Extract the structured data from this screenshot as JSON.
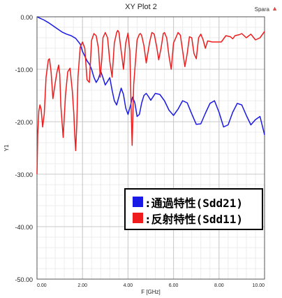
{
  "header": {
    "title": "XY Plot 2",
    "tag": "Spara",
    "tag_mark": "▲"
  },
  "chart_data": {
    "type": "line",
    "title": "XY Plot 2",
    "xlabel": "F [GHz]",
    "ylabel": "Y1",
    "xlim": [
      0,
      10
    ],
    "ylim": [
      -50,
      0
    ],
    "x_ticks": [
      "0.00",
      "2.00",
      "4.00",
      "6.00",
      "8.00",
      "10.00"
    ],
    "y_ticks": [
      "0.00",
      "-10.00",
      "-20.00",
      "-30.00",
      "-40.00",
      "-50.00"
    ],
    "grid": true,
    "legend_position": "lower-right",
    "colors": {
      "sdd21": "#1a1ae6",
      "sdd11": "#ee1c1c"
    },
    "series": [
      {
        "key": "sdd21",
        "name": "通過特性(Sdd21)",
        "color": "#1a1ae6",
        "x": [
          0.0,
          0.15,
          0.3,
          0.5,
          0.7,
          0.9,
          1.1,
          1.3,
          1.5,
          1.7,
          1.9,
          2.0,
          2.1,
          2.2,
          2.3,
          2.4,
          2.5,
          2.6,
          2.7,
          2.8,
          2.9,
          3.0,
          3.1,
          3.2,
          3.3,
          3.4,
          3.5,
          3.6,
          3.7,
          3.8,
          3.9,
          4.0,
          4.1,
          4.2,
          4.3,
          4.4,
          4.5,
          4.6,
          4.7,
          4.8,
          4.9,
          5.0,
          5.2,
          5.4,
          5.6,
          5.8,
          6.0,
          6.2,
          6.4,
          6.6,
          6.8,
          7.0,
          7.2,
          7.4,
          7.6,
          7.8,
          8.0,
          8.2,
          8.4,
          8.6,
          8.8,
          9.0,
          9.2,
          9.4,
          9.6,
          9.8,
          10.0
        ],
        "y": [
          0.0,
          -0.3,
          -0.6,
          -1.1,
          -1.7,
          -2.3,
          -2.9,
          -3.3,
          -3.6,
          -4.1,
          -5.2,
          -6.6,
          -7.5,
          -8.4,
          -9.0,
          -10.0,
          -11.5,
          -12.5,
          -11.8,
          -10.4,
          -11.6,
          -13.0,
          -12.3,
          -11.6,
          -14.0,
          -16.0,
          -16.8,
          -15.2,
          -13.6,
          -14.8,
          -17.4,
          -18.6,
          -17.0,
          -15.3,
          -16.4,
          -19.0,
          -18.6,
          -16.4,
          -15.0,
          -14.6,
          -15.2,
          -15.9,
          -14.6,
          -14.8,
          -16.0,
          -17.8,
          -18.8,
          -17.6,
          -16.0,
          -16.4,
          -18.5,
          -20.5,
          -20.4,
          -18.4,
          -16.5,
          -16.0,
          -18.2,
          -21.0,
          -20.6,
          -18.2,
          -16.5,
          -16.8,
          -18.8,
          -20.6,
          -19.6,
          -19.0,
          -22.5
        ]
      },
      {
        "key": "sdd11",
        "name": "反射特性(Sdd11)",
        "color": "#ee1c1c",
        "x": [
          0.0,
          0.03,
          0.08,
          0.13,
          0.18,
          0.25,
          0.32,
          0.4,
          0.5,
          0.55,
          0.62,
          0.7,
          0.8,
          0.88,
          0.95,
          1.0,
          1.05,
          1.15,
          1.25,
          1.35,
          1.45,
          1.55,
          1.62,
          1.66,
          1.7,
          1.75,
          1.8,
          1.9,
          2.0,
          2.1,
          2.2,
          2.3,
          2.35,
          2.4,
          2.5,
          2.6,
          2.7,
          2.78,
          2.85,
          2.9,
          3.0,
          3.1,
          3.2,
          3.3,
          3.4,
          3.5,
          3.55,
          3.6,
          3.7,
          3.8,
          3.9,
          4.0,
          4.08,
          4.13,
          4.18,
          4.25,
          4.4,
          4.5,
          4.55,
          4.6,
          4.7,
          4.8,
          4.95,
          5.05,
          5.15,
          5.25,
          5.35,
          5.45,
          5.55,
          5.6,
          5.7,
          5.8,
          5.9,
          6.0,
          6.2,
          6.3,
          6.5,
          6.6,
          6.7,
          6.8,
          6.9,
          7.0,
          7.1,
          7.2,
          7.3,
          7.4,
          7.5,
          7.7,
          7.9,
          8.0,
          8.1,
          8.3,
          8.5,
          8.6,
          8.7,
          8.9,
          9.0,
          9.2,
          9.4,
          9.6,
          9.8,
          10.0
        ],
        "y": [
          -30.0,
          -22.5,
          -18.0,
          -16.8,
          -17.6,
          -21.0,
          -18.5,
          -11.5,
          -8.2,
          -8.0,
          -10.5,
          -15.6,
          -12.6,
          -10.5,
          -9.2,
          -11.0,
          -17.0,
          -23.0,
          -15.0,
          -10.5,
          -9.8,
          -14.0,
          -18.5,
          -22.5,
          -25.5,
          -20.5,
          -11.5,
          -5.8,
          -4.8,
          -6.0,
          -12.0,
          -12.5,
          -8.5,
          -4.5,
          -3.2,
          -3.6,
          -6.0,
          -11.5,
          -8.0,
          -4.0,
          -3.0,
          -4.0,
          -8.5,
          -11.5,
          -5.0,
          -3.0,
          -2.6,
          -3.0,
          -6.5,
          -10.0,
          -5.0,
          -3.1,
          -6.5,
          -16.0,
          -24.5,
          -13.0,
          -4.4,
          -3.3,
          -3.2,
          -3.6,
          -5.5,
          -8.8,
          -4.8,
          -3.0,
          -3.3,
          -5.5,
          -8.2,
          -6.0,
          -3.2,
          -3.0,
          -4.0,
          -7.5,
          -10.0,
          -5.0,
          -3.0,
          -3.5,
          -9.5,
          -7.0,
          -3.8,
          -4.0,
          -7.0,
          -8.0,
          -4.0,
          -3.3,
          -4.4,
          -6.0,
          -4.6,
          -4.8,
          -4.8,
          -4.8,
          -4.8,
          -3.6,
          -3.8,
          -4.2,
          -3.6,
          -3.4,
          -3.2,
          -4.0,
          -3.3,
          -4.4,
          -4.0,
          -2.8
        ]
      }
    ]
  },
  "legend": {
    "items": [
      {
        "label": ":通過特性(Sdd21)",
        "color": "#1a1ae6"
      },
      {
        "label": ":反射特性(Sdd11)",
        "color": "#ee1c1c"
      }
    ]
  }
}
